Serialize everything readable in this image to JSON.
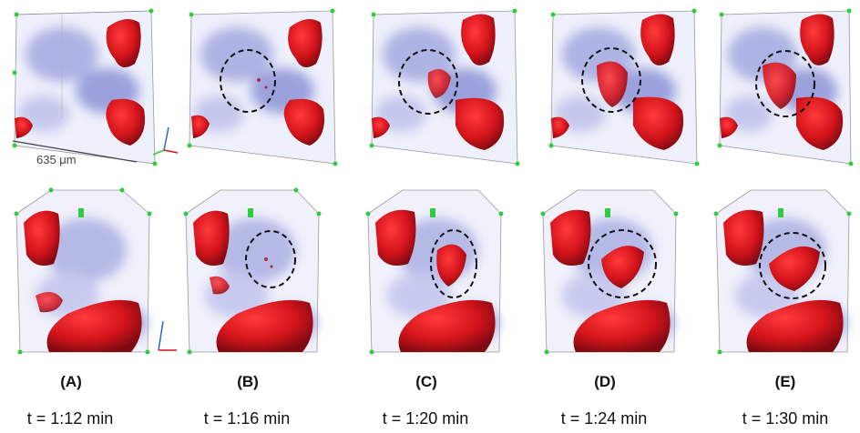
{
  "scale_bar": {
    "label": "635 μm"
  },
  "panels": [
    {
      "label": "(A)",
      "time": "t = 1:12 min"
    },
    {
      "label": "(B)",
      "time": "t = 1:16 min"
    },
    {
      "label": "(C)",
      "time": "t = 1:20 min"
    },
    {
      "label": "(D)",
      "time": "t = 1:24 min"
    },
    {
      "label": "(E)",
      "time": "t = 1:30 min"
    }
  ],
  "colors": {
    "phase_red": "#d4141c",
    "pore_blue": "#b9bde6",
    "frame_green": "#2ecc40",
    "circle": "#111111"
  }
}
